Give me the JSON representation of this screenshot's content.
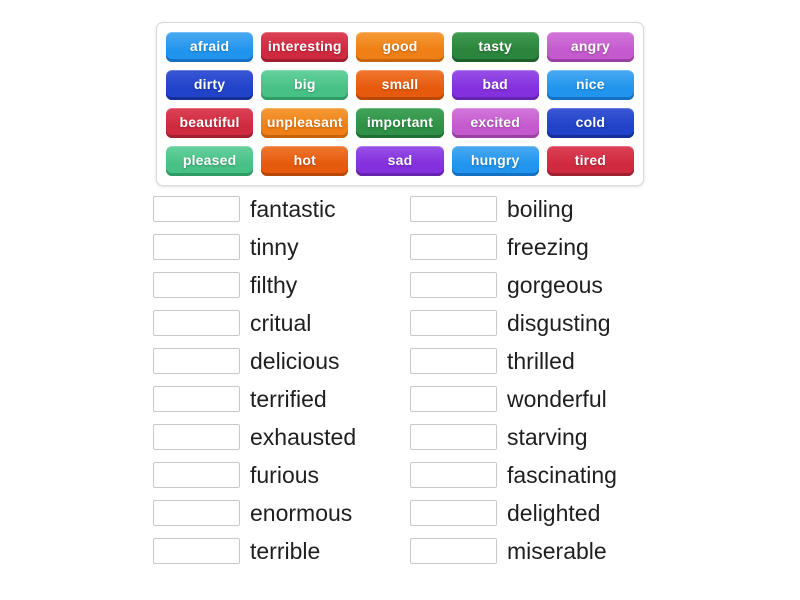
{
  "palette": {
    "lightblue": {
      "top": "#4aa9f1",
      "base": "#2195ee",
      "edge": "#1470c2"
    },
    "crimson": {
      "top": "#dc4156",
      "base": "#d02a40",
      "edge": "#a02032"
    },
    "orange": {
      "top": "#f59b36",
      "base": "#ef7f16",
      "edge": "#c6650e"
    },
    "forest": {
      "top": "#3f9c50",
      "base": "#2b853c",
      "edge": "#1e612a"
    },
    "orchid": {
      "top": "#d277da",
      "base": "#c55ace",
      "edge": "#9b3fa5"
    },
    "darkblue": {
      "top": "#3a57d5",
      "base": "#2143ca",
      "edge": "#142f98"
    },
    "emerald": {
      "top": "#66d19d",
      "base": "#48c186",
      "edge": "#2f9c66"
    },
    "orangered": {
      "top": "#f0772f",
      "base": "#e65a0d",
      "edge": "#b84708"
    },
    "violet": {
      "top": "#9851e7",
      "base": "#8430de",
      "edge": "#6523af"
    },
    "green": {
      "top": "#41a457",
      "base": "#2e9147",
      "edge": "#206f34"
    }
  },
  "grid": {
    "tiles": [
      {
        "label": "afraid",
        "color": "lightblue"
      },
      {
        "label": "interesting",
        "color": "crimson"
      },
      {
        "label": "good",
        "color": "orange"
      },
      {
        "label": "tasty",
        "color": "forest"
      },
      {
        "label": "angry",
        "color": "orchid"
      },
      {
        "label": "dirty",
        "color": "darkblue"
      },
      {
        "label": "big",
        "color": "emerald"
      },
      {
        "label": "small",
        "color": "orangered"
      },
      {
        "label": "bad",
        "color": "violet"
      },
      {
        "label": "nice",
        "color": "lightblue"
      },
      {
        "label": "beautiful",
        "color": "crimson"
      },
      {
        "label": "unpleasant",
        "color": "orange"
      },
      {
        "label": "important",
        "color": "green"
      },
      {
        "label": "excited",
        "color": "orchid"
      },
      {
        "label": "cold",
        "color": "darkblue"
      },
      {
        "label": "pleased",
        "color": "emerald"
      },
      {
        "label": "hot",
        "color": "orangered"
      },
      {
        "label": "sad",
        "color": "violet"
      },
      {
        "label": "hungry",
        "color": "lightblue"
      },
      {
        "label": "tired",
        "color": "crimson"
      }
    ]
  },
  "matches": {
    "left": [
      "fantastic",
      "tinny",
      "filthy",
      "critual",
      "delicious",
      "terrified",
      "exhausted",
      "furious",
      "enormous",
      "terrible"
    ],
    "right": [
      "boiling",
      "freezing",
      "gorgeous",
      "disgusting",
      "thrilled",
      "wonderful",
      "starving",
      "fascinating",
      "delighted",
      "miserable"
    ]
  }
}
